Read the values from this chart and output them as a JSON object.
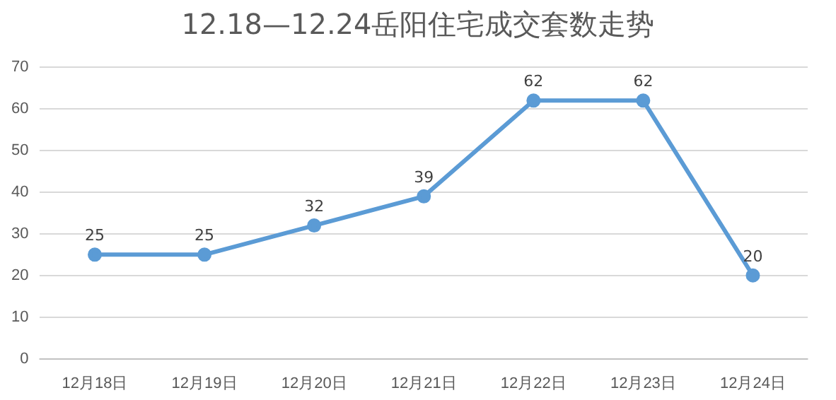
{
  "chart_data": {
    "type": "line",
    "title": "12.18—12.24岳阳住宅成交套数走势",
    "categories": [
      "12月18日",
      "12月19日",
      "12月20日",
      "12月21日",
      "12月22日",
      "12月23日",
      "12月24日"
    ],
    "series": [
      {
        "color": "#5b9bd5",
        "values": [
          25,
          25,
          32,
          39,
          62,
          62,
          20
        ]
      }
    ],
    "ylim": [
      0,
      70
    ],
    "yticks": [
      0,
      10,
      20,
      30,
      40,
      50,
      60,
      70
    ],
    "grid": "y",
    "marker": "circle",
    "data_labels": true,
    "legend": false
  }
}
